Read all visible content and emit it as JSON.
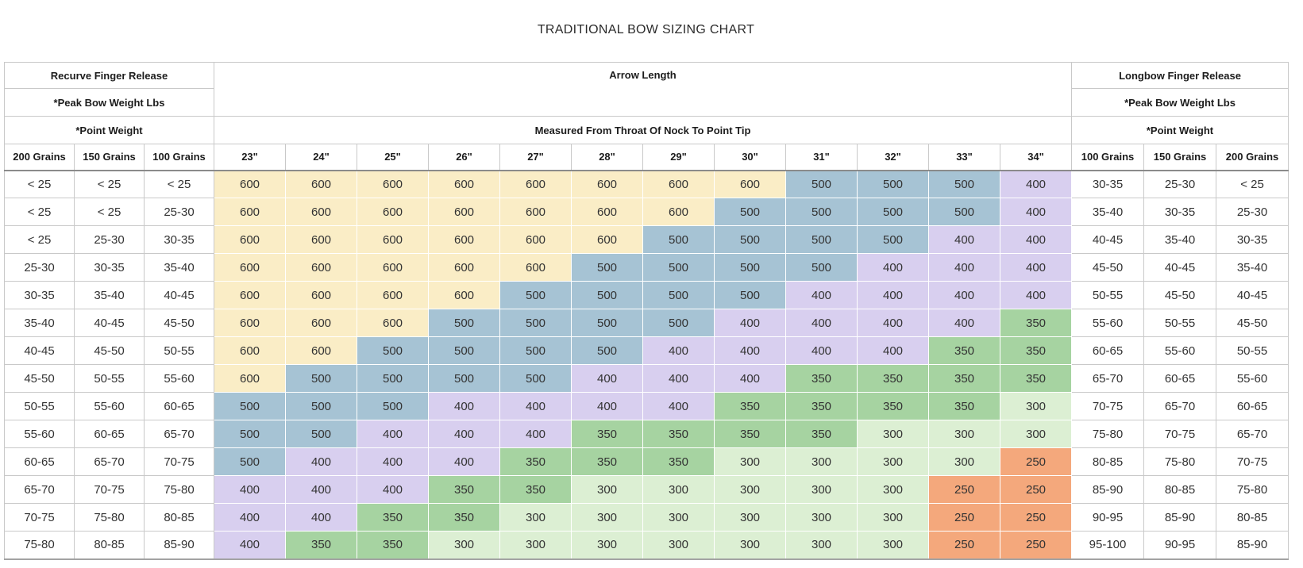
{
  "page_title": "TRADITIONAL BOW SIZING CHART",
  "table": {
    "left_header": {
      "row1": "Recurve Finger Release",
      "row2": "*Peak Bow Weight Lbs",
      "row3": "*Point Weight"
    },
    "middle_header": {
      "title": "Arrow Length",
      "subtitle": "Measured From Throat Of Nock To Point Tip"
    },
    "right_header": {
      "row1": "Longbow Finger Release",
      "row2": "*Peak Bow Weight Lbs",
      "row3": "*Point Weight"
    },
    "spine_colors": {
      "600": "#faedc6",
      "500": "#a6c3d4",
      "400": "#d8cfef",
      "350": "#a6d3a1",
      "300": "#dcefd3",
      "250": "#f4a87c"
    }
  },
  "chart_data": {
    "type": "table",
    "title": "TRADITIONAL BOW SIZING CHART",
    "columns": [
      "200 Grains",
      "150 Grains",
      "100 Grains",
      "23\"",
      "24\"",
      "25\"",
      "26\"",
      "27\"",
      "28\"",
      "29\"",
      "30\"",
      "31\"",
      "32\"",
      "33\"",
      "34\"",
      "100 Grains",
      "150 Grains",
      "200 Grains"
    ],
    "rows": [
      [
        "< 25",
        "< 25",
        "< 25",
        600,
        600,
        600,
        600,
        600,
        600,
        600,
        600,
        500,
        500,
        500,
        400,
        "30-35",
        "25-30",
        "< 25"
      ],
      [
        "< 25",
        "< 25",
        "25-30",
        600,
        600,
        600,
        600,
        600,
        600,
        600,
        500,
        500,
        500,
        500,
        400,
        "35-40",
        "30-35",
        "25-30"
      ],
      [
        "< 25",
        "25-30",
        "30-35",
        600,
        600,
        600,
        600,
        600,
        600,
        500,
        500,
        500,
        500,
        400,
        400,
        "40-45",
        "35-40",
        "30-35"
      ],
      [
        "25-30",
        "30-35",
        "35-40",
        600,
        600,
        600,
        600,
        600,
        500,
        500,
        500,
        500,
        400,
        400,
        400,
        "45-50",
        "40-45",
        "35-40"
      ],
      [
        "30-35",
        "35-40",
        "40-45",
        600,
        600,
        600,
        600,
        500,
        500,
        500,
        500,
        400,
        400,
        400,
        400,
        "50-55",
        "45-50",
        "40-45"
      ],
      [
        "35-40",
        "40-45",
        "45-50",
        600,
        600,
        600,
        500,
        500,
        500,
        500,
        400,
        400,
        400,
        400,
        350,
        "55-60",
        "50-55",
        "45-50"
      ],
      [
        "40-45",
        "45-50",
        "50-55",
        600,
        600,
        500,
        500,
        500,
        500,
        400,
        400,
        400,
        400,
        350,
        350,
        "60-65",
        "55-60",
        "50-55"
      ],
      [
        "45-50",
        "50-55",
        "55-60",
        600,
        500,
        500,
        500,
        500,
        400,
        400,
        400,
        350,
        350,
        350,
        350,
        "65-70",
        "60-65",
        "55-60"
      ],
      [
        "50-55",
        "55-60",
        "60-65",
        500,
        500,
        500,
        400,
        400,
        400,
        400,
        350,
        350,
        350,
        350,
        300,
        "70-75",
        "65-70",
        "60-65"
      ],
      [
        "55-60",
        "60-65",
        "65-70",
        500,
        500,
        400,
        400,
        400,
        350,
        350,
        350,
        350,
        300,
        300,
        300,
        "75-80",
        "70-75",
        "65-70"
      ],
      [
        "60-65",
        "65-70",
        "70-75",
        500,
        400,
        400,
        400,
        350,
        350,
        350,
        300,
        300,
        300,
        300,
        250,
        "80-85",
        "75-80",
        "70-75"
      ],
      [
        "65-70",
        "70-75",
        "75-80",
        400,
        400,
        400,
        350,
        350,
        300,
        300,
        300,
        300,
        300,
        250,
        250,
        "85-90",
        "80-85",
        "75-80"
      ],
      [
        "70-75",
        "75-80",
        "80-85",
        400,
        400,
        350,
        350,
        300,
        300,
        300,
        300,
        300,
        300,
        250,
        250,
        "90-95",
        "85-90",
        "80-85"
      ],
      [
        "75-80",
        "80-85",
        "85-90",
        400,
        350,
        350,
        300,
        300,
        300,
        300,
        300,
        300,
        300,
        250,
        250,
        "95-100",
        "90-95",
        "85-90"
      ]
    ]
  }
}
